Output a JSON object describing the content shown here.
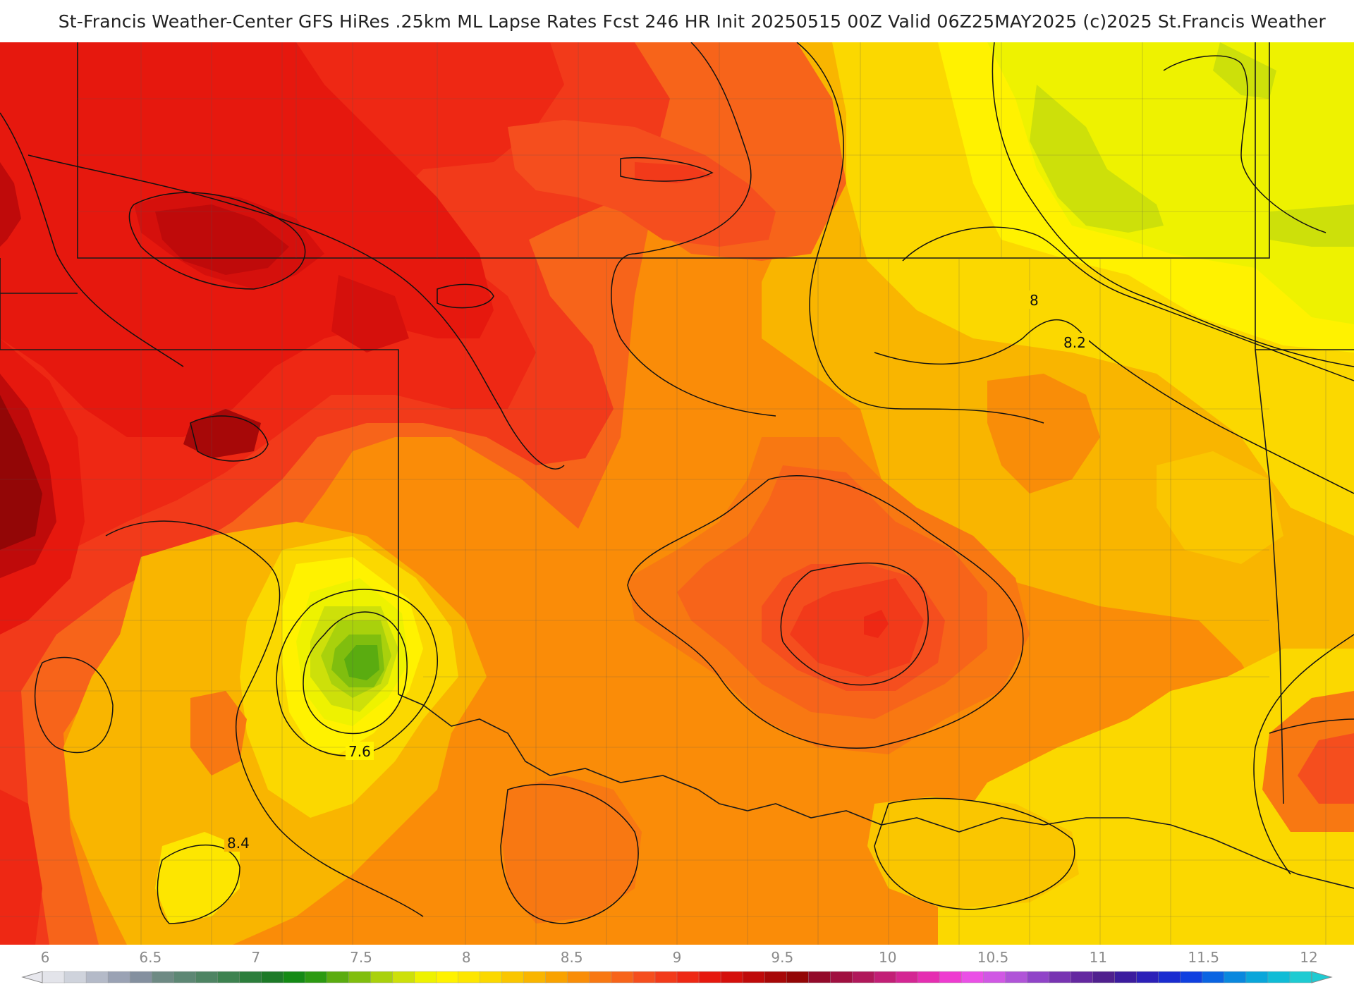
{
  "header": {
    "title": "St-Francis Weather-Center GFS HiRes .25km ML Lapse Rates  Fcst 246 HR Init 20250515 00Z  Valid 06Z25MAY2025    (c)2025 St.Francis Weather"
  },
  "map": {
    "contour_labels": [
      {
        "id": "contour-label-8",
        "text": "8"
      },
      {
        "id": "contour-label-8-2",
        "text": "8.2"
      },
      {
        "id": "contour-label-7-6",
        "text": "7.6"
      },
      {
        "id": "contour-label-8-4",
        "text": "8.4"
      }
    ]
  },
  "legend": {
    "tick_labels": [
      "6",
      "6.5",
      "7",
      "7.5",
      "8",
      "8.5",
      "9",
      "9.5",
      "10",
      "10.5",
      "11",
      "11.5",
      "12"
    ],
    "colors": [
      "#e3e4ea",
      "#cfd3dc",
      "#b4bac8",
      "#9aa2b4",
      "#84909f",
      "#6e8a84",
      "#5d8774",
      "#4e8463",
      "#3d8250",
      "#2c7e3c",
      "#1d7a28",
      "#148a15",
      "#2c9a12",
      "#5aac10",
      "#80be0e",
      "#a9d10c",
      "#cde00a",
      "#eef200",
      "#fff200",
      "#fde600",
      "#fbd800",
      "#fac600",
      "#f9b500",
      "#f9a200",
      "#f98d08",
      "#f87812",
      "#f7641a",
      "#f54e1e",
      "#f23a1a",
      "#ee2814",
      "#e6180e",
      "#d5100c",
      "#bf0a0a",
      "#a70808",
      "#930606",
      "#930a2a",
      "#a01040",
      "#b0185a",
      "#c21f76",
      "#d42693",
      "#e52eb1",
      "#ee3bd0",
      "#ea50e6",
      "#d058e4",
      "#b054d8",
      "#9044c8",
      "#7834b2",
      "#6428a0",
      "#50208e",
      "#3c1c9e",
      "#2c20b8",
      "#1a2cd0",
      "#1040e0",
      "#0a64e2",
      "#0a88de",
      "#0aa6da",
      "#10bcd6",
      "#1ecbd2"
    ]
  }
}
